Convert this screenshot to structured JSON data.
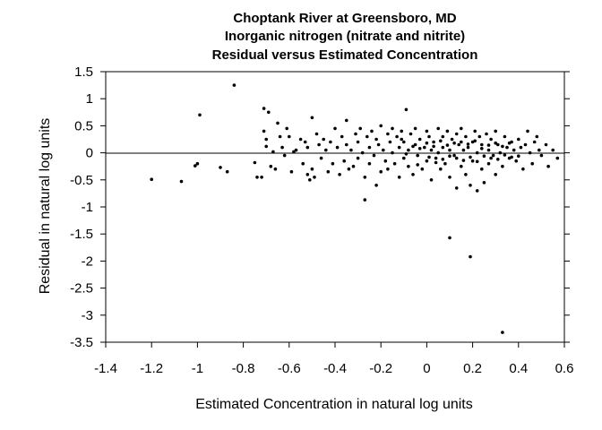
{
  "chart_data": {
    "type": "scatter",
    "title": [
      "Choptank River at Greensboro, MD",
      "Inorganic nitrogen (nitrate and nitrite)",
      "Residual versus Estimated Concentration"
    ],
    "xlabel": "Estimated Concentration in natural log units",
    "ylabel": "Residual in natural log units",
    "xlim": [
      -1.4,
      0.6
    ],
    "ylim": [
      -3.5,
      1.5
    ],
    "xticks": [
      "-1.4",
      "-1.2",
      "-1",
      "-0.8",
      "-0.6",
      "-0.4",
      "-0.2",
      "0",
      "0.2",
      "0.4",
      "0.6"
    ],
    "yticks": [
      "1.5",
      "1",
      "0.5",
      "0",
      "-0.5",
      "-1",
      "-1.5",
      "-2",
      "-2.5",
      "-3",
      "-3.5"
    ],
    "reference_line_y": 0,
    "grid": false,
    "series": [
      {
        "points": [
          [
            -1.2,
            -0.49
          ],
          [
            -1.07,
            -0.53
          ],
          [
            -1.01,
            -0.24
          ],
          [
            -1.0,
            -0.2
          ],
          [
            -0.99,
            0.7
          ],
          [
            -0.9,
            -0.27
          ],
          [
            -0.87,
            -0.35
          ],
          [
            -0.84,
            1.25
          ],
          [
            -0.75,
            -0.18
          ],
          [
            -0.74,
            -0.45
          ],
          [
            -0.72,
            -0.45
          ],
          [
            -0.71,
            0.82
          ],
          [
            -0.71,
            0.4
          ],
          [
            -0.7,
            0.25
          ],
          [
            -0.7,
            0.12
          ],
          [
            -0.69,
            0.75
          ],
          [
            -0.68,
            -0.25
          ],
          [
            -0.67,
            0.02
          ],
          [
            -0.66,
            -0.3
          ],
          [
            -0.65,
            0.55
          ],
          [
            -0.64,
            0.3
          ],
          [
            -0.63,
            0.1
          ],
          [
            -0.62,
            -0.05
          ],
          [
            -0.61,
            0.45
          ],
          [
            -0.6,
            0.3
          ],
          [
            -0.59,
            -0.35
          ],
          [
            -0.58,
            0.02
          ],
          [
            -0.57,
            0.05
          ],
          [
            -0.55,
            0.25
          ],
          [
            -0.54,
            -0.2
          ],
          [
            -0.53,
            0.2
          ],
          [
            -0.52,
            -0.4
          ],
          [
            -0.52,
            0.1
          ],
          [
            -0.51,
            -0.5
          ],
          [
            -0.5,
            0.65
          ],
          [
            -0.5,
            -0.3
          ],
          [
            -0.49,
            -0.45
          ],
          [
            -0.48,
            0.35
          ],
          [
            -0.47,
            0.15
          ],
          [
            -0.46,
            -0.1
          ],
          [
            -0.45,
            0.25
          ],
          [
            -0.44,
            0.05
          ],
          [
            -0.43,
            -0.35
          ],
          [
            -0.42,
            0.2
          ],
          [
            -0.41,
            -0.2
          ],
          [
            -0.4,
            0.45
          ],
          [
            -0.39,
            0.1
          ],
          [
            -0.38,
            -0.4
          ],
          [
            -0.37,
            0.3
          ],
          [
            -0.36,
            -0.15
          ],
          [
            -0.35,
            0.6
          ],
          [
            -0.35,
            0.15
          ],
          [
            -0.34,
            -0.3
          ],
          [
            -0.33,
            0.05
          ],
          [
            -0.32,
            -0.25
          ],
          [
            -0.31,
            0.35
          ],
          [
            -0.3,
            0.2
          ],
          [
            -0.3,
            -0.1
          ],
          [
            -0.29,
            0.45
          ],
          [
            -0.28,
            0.0
          ],
          [
            -0.27,
            -0.87
          ],
          [
            -0.27,
            -0.45
          ],
          [
            -0.26,
            0.3
          ],
          [
            -0.25,
            0.1
          ],
          [
            -0.25,
            -0.2
          ],
          [
            -0.24,
            0.4
          ],
          [
            -0.23,
            -0.05
          ],
          [
            -0.22,
            -0.6
          ],
          [
            -0.22,
            0.25
          ],
          [
            -0.21,
            0.15
          ],
          [
            -0.2,
            -0.35
          ],
          [
            -0.2,
            0.5
          ],
          [
            -0.19,
            0.05
          ],
          [
            -0.18,
            -0.15
          ],
          [
            -0.17,
            0.35
          ],
          [
            -0.17,
            -0.3
          ],
          [
            -0.16,
            0.2
          ],
          [
            -0.15,
            0.0
          ],
          [
            -0.15,
            0.45
          ],
          [
            -0.14,
            -0.2
          ],
          [
            -0.13,
            0.3
          ],
          [
            -0.12,
            0.1
          ],
          [
            -0.12,
            -0.45
          ],
          [
            -0.11,
            0.4
          ],
          [
            -0.1,
            -0.1
          ],
          [
            -0.1,
            0.2
          ],
          [
            -0.09,
            0.8
          ],
          [
            -0.08,
            -0.25
          ],
          [
            -0.08,
            0.05
          ],
          [
            -0.07,
            0.35
          ],
          [
            -0.06,
            -0.4
          ],
          [
            -0.05,
            0.15
          ],
          [
            -0.05,
            0.45
          ],
          [
            -0.04,
            -0.05
          ],
          [
            -0.03,
            0.25
          ],
          [
            -0.02,
            -0.3
          ],
          [
            -0.01,
            0.1
          ],
          [
            0.0,
            0.4
          ],
          [
            0.0,
            -0.15
          ],
          [
            0.01,
            0.3
          ],
          [
            0.02,
            0.05
          ],
          [
            0.02,
            -0.5
          ],
          [
            0.03,
            0.2
          ],
          [
            0.04,
            -0.1
          ],
          [
            0.05,
            0.45
          ],
          [
            0.05,
            0.0
          ],
          [
            0.06,
            -0.3
          ],
          [
            0.07,
            0.3
          ],
          [
            0.07,
            0.1
          ],
          [
            0.08,
            -0.2
          ],
          [
            0.09,
            0.4
          ],
          [
            0.1,
            0.05
          ],
          [
            0.1,
            -1.57
          ],
          [
            0.1,
            -0.45
          ],
          [
            0.11,
            0.25
          ],
          [
            0.12,
            -0.05
          ],
          [
            0.13,
            0.35
          ],
          [
            0.13,
            -0.65
          ],
          [
            0.14,
            0.15
          ],
          [
            0.15,
            -0.25
          ],
          [
            0.15,
            0.45
          ],
          [
            0.16,
            0.05
          ],
          [
            0.17,
            -0.4
          ],
          [
            0.17,
            0.3
          ],
          [
            0.18,
            0.1
          ],
          [
            0.19,
            -0.6
          ],
          [
            0.19,
            -1.92
          ],
          [
            0.2,
            0.2
          ],
          [
            0.2,
            -0.15
          ],
          [
            0.21,
            0.4
          ],
          [
            0.22,
            0.0
          ],
          [
            0.22,
            -0.7
          ],
          [
            0.23,
            0.3
          ],
          [
            0.24,
            -0.3
          ],
          [
            0.24,
            0.15
          ],
          [
            0.25,
            -0.55
          ],
          [
            0.26,
            0.35
          ],
          [
            0.27,
            0.05
          ],
          [
            0.27,
            -0.2
          ],
          [
            0.28,
            0.25
          ],
          [
            0.29,
            -0.05
          ],
          [
            0.3,
            0.4
          ],
          [
            0.3,
            -0.4
          ],
          [
            0.31,
            0.15
          ],
          [
            0.32,
            0.0
          ],
          [
            0.33,
            -0.25
          ],
          [
            0.33,
            -3.32
          ],
          [
            0.34,
            0.3
          ],
          [
            0.35,
            0.1
          ],
          [
            0.36,
            -0.1
          ],
          [
            0.37,
            0.2
          ],
          [
            0.38,
            0.05
          ],
          [
            0.39,
            -0.15
          ],
          [
            0.4,
            0.25
          ],
          [
            0.41,
            0.1
          ],
          [
            0.42,
            -0.3
          ],
          [
            0.43,
            0.15
          ],
          [
            0.44,
            0.4
          ],
          [
            0.45,
            0.0
          ],
          [
            0.46,
            -0.2
          ],
          [
            0.47,
            0.2
          ],
          [
            0.48,
            0.3
          ],
          [
            0.49,
            0.05
          ],
          [
            0.5,
            -0.05
          ],
          [
            0.52,
            0.15
          ],
          [
            0.53,
            -0.25
          ],
          [
            0.55,
            0.05
          ],
          [
            0.57,
            -0.1
          ],
          [
            -0.11,
            0.25
          ],
          [
            -0.06,
            0.12
          ],
          [
            -0.03,
            0.08
          ],
          [
            0.0,
            0.18
          ],
          [
            0.03,
            0.12
          ],
          [
            0.06,
            0.22
          ],
          [
            0.09,
            0.14
          ],
          [
            0.12,
            0.18
          ],
          [
            0.15,
            0.2
          ],
          [
            0.18,
            0.16
          ],
          [
            0.21,
            0.22
          ],
          [
            0.24,
            0.08
          ],
          [
            0.27,
            0.14
          ],
          [
            0.3,
            0.18
          ],
          [
            0.33,
            0.12
          ],
          [
            0.36,
            0.18
          ],
          [
            -0.09,
            -0.02
          ],
          [
            -0.04,
            -0.22
          ],
          [
            0.01,
            -0.08
          ],
          [
            0.04,
            -0.18
          ],
          [
            0.07,
            -0.12
          ],
          [
            0.1,
            -0.06
          ],
          [
            0.13,
            -0.1
          ],
          [
            0.16,
            -0.14
          ],
          [
            0.19,
            -0.08
          ],
          [
            0.22,
            -0.16
          ],
          [
            0.25,
            -0.06
          ],
          [
            0.28,
            -0.1
          ],
          [
            0.31,
            -0.12
          ],
          [
            0.34,
            -0.04
          ],
          [
            0.37,
            -0.08
          ],
          [
            0.4,
            -0.06
          ]
        ]
      }
    ]
  }
}
